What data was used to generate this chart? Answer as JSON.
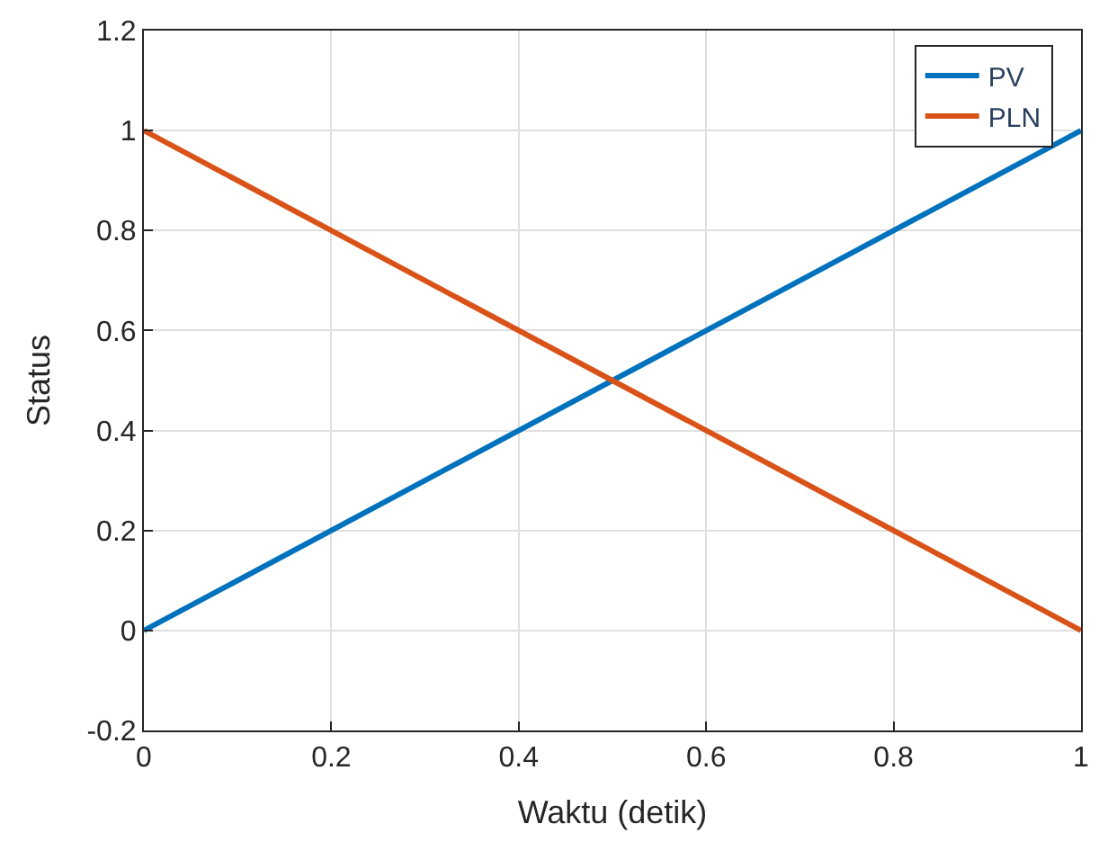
{
  "chart_data": {
    "type": "line",
    "xlabel": "Waktu (detik)",
    "ylabel": "Status",
    "x": [
      0,
      1
    ],
    "series": [
      {
        "name": "PV",
        "color": "#0072bd",
        "values": [
          0,
          1
        ]
      },
      {
        "name": "PLN",
        "color": "#d95319",
        "values": [
          1,
          0
        ]
      }
    ],
    "xlim": [
      0,
      1
    ],
    "xticks": [
      0,
      0.2,
      0.4,
      0.6,
      0.8,
      1
    ],
    "ylim": [
      -0.2,
      1.2
    ],
    "yticks": [
      -0.2,
      0,
      0.2,
      0.4,
      0.6,
      0.8,
      1,
      1.2
    ],
    "grid": true,
    "legend": "top right",
    "line_style": "solid"
  }
}
